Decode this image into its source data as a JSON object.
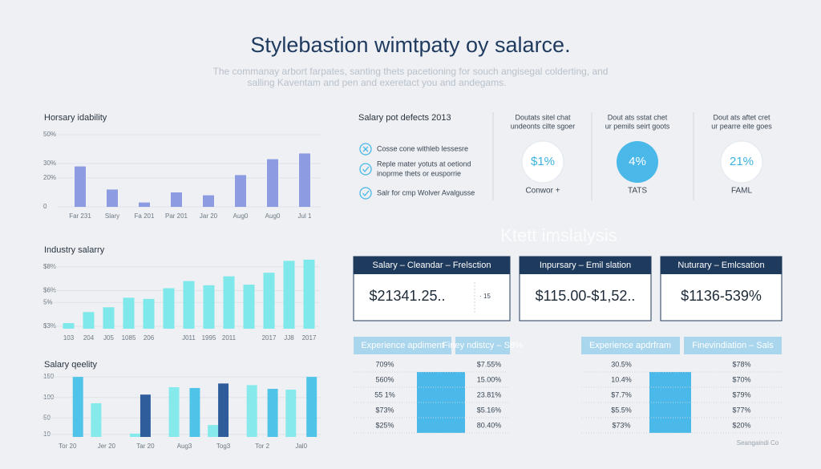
{
  "header": {
    "title": "Stylebastion wimtpaty oy salarce.",
    "subtitle": [
      "The commanay arbort farpates, santing thets pacetioning for souch angisegal colderting, and",
      "salling Kaventam and pen and exeretact you and andegams."
    ]
  },
  "chart_data": [
    {
      "type": "bar",
      "title": "Horsary idability",
      "categories": [
        "Far 231",
        "Slary",
        "Fa 201",
        "Par 201",
        "Jar 20",
        "Aug0",
        "Aug0",
        "Jul 1"
      ],
      "values": [
        28,
        12,
        3,
        10,
        8,
        22,
        33,
        37
      ],
      "color": "#8c9be2",
      "ylim": [
        0,
        55
      ],
      "yticks": [
        0,
        {
          "value": 20,
          "label": "20%"
        },
        {
          "value": 30,
          "label": "30%"
        },
        {
          "value": 50,
          "label": "50%"
        }
      ],
      "grid": true
    },
    {
      "type": "bar",
      "title": "Industry salarry",
      "categories": [
        "103",
        "204",
        "J05",
        "1085",
        "206",
        null,
        "J011",
        "1995",
        "2011",
        null,
        "2017",
        "JJ8",
        "2017"
      ],
      "values": [
        32.7,
        42,
        46,
        54,
        53,
        62,
        68,
        64.5,
        72,
        65,
        75,
        85,
        86
      ],
      "color": "#7ee8ea",
      "ylim": [
        28,
        94
      ],
      "yticks": [
        {
          "value": 30,
          "label": "$3%"
        },
        {
          "value": 50,
          "label": "5%"
        },
        {
          "value": 60,
          "label": "$6%"
        },
        {
          "value": 80,
          "label": "$8%"
        }
      ],
      "grid": true
    },
    {
      "type": "bar",
      "title": "Salary qeelity",
      "categories": [
        "Tor 20",
        "Jer 20",
        "Tar 20",
        "Aug3",
        "Tog3",
        "Tor 2",
        "Jal0"
      ],
      "series": [
        {
          "color": "#86eaec",
          "values": [
            null,
            86,
            12,
            125,
            33,
            130,
            119
          ]
        },
        {
          "color": "#2f5d9c",
          "values": [
            null,
            null,
            107,
            null,
            134,
            null,
            null
          ]
        },
        {
          "color": "#4fc3e8",
          "values": [
            150,
            null,
            null,
            123,
            null,
            121,
            150
          ]
        }
      ],
      "ylim": [
        4,
        160
      ],
      "yticks": [
        10,
        50,
        100,
        150
      ],
      "grid": true
    }
  ],
  "checklist": {
    "title": "Salary pot defects 2013",
    "items": [
      [
        "Cosse cone withleb lessesre"
      ],
      [
        "Reple mater yotuts at oetiond",
        "inoprme thets or eusporrie"
      ],
      [
        "Salr for cmp Wolver Avalgusse"
      ]
    ]
  },
  "stats": [
    {
      "heading": [
        "Doutats sitel chat",
        "undeonts cilte sgoer"
      ],
      "value": "$1%",
      "label": "Conwor +"
    },
    {
      "heading": [
        "Dout ats sstat chet",
        "ur pemils seirt goots"
      ],
      "value": "4%",
      "label": "TATS"
    },
    {
      "heading": [
        "Dout ats aftet cret",
        "ur pearre eite goes"
      ],
      "value": "21%",
      "label": "FAML"
    }
  ],
  "section_title": "Ktett imslalysis",
  "cards": [
    {
      "header": "Salary  –  Cleandar  –  Frelsction",
      "value": "$21341.25..",
      "note": "· 15"
    },
    {
      "header": "Inpursary  –  Emil slation",
      "value": "$115.00-$1,52.."
    },
    {
      "header": "Nuturary  –  Emlcsation",
      "value": "$1136-539%"
    }
  ],
  "tables": [
    {
      "headers": [
        "Experience apdiment",
        "Finey ndistcy  –  S8%"
      ],
      "rows": [
        [
          "709%",
          "$7.55%"
        ],
        [
          "560%",
          "15.00%"
        ],
        [
          "55 1%",
          "23.81%"
        ],
        [
          "$73%",
          "$5.16%"
        ],
        [
          "$25%",
          "80.40%"
        ]
      ]
    },
    {
      "headers": [
        "Experience apdrfram",
        "Finevindiation  –  Sals"
      ],
      "rows": [
        [
          "30.5%",
          "$78%"
        ],
        [
          "10.4%",
          "$70%"
        ],
        [
          "$7.7%",
          "$79%"
        ],
        [
          "$5.5%",
          "$77%"
        ],
        [
          "$73%",
          "$20%"
        ]
      ]
    }
  ],
  "footer": "Seangaindi Co"
}
